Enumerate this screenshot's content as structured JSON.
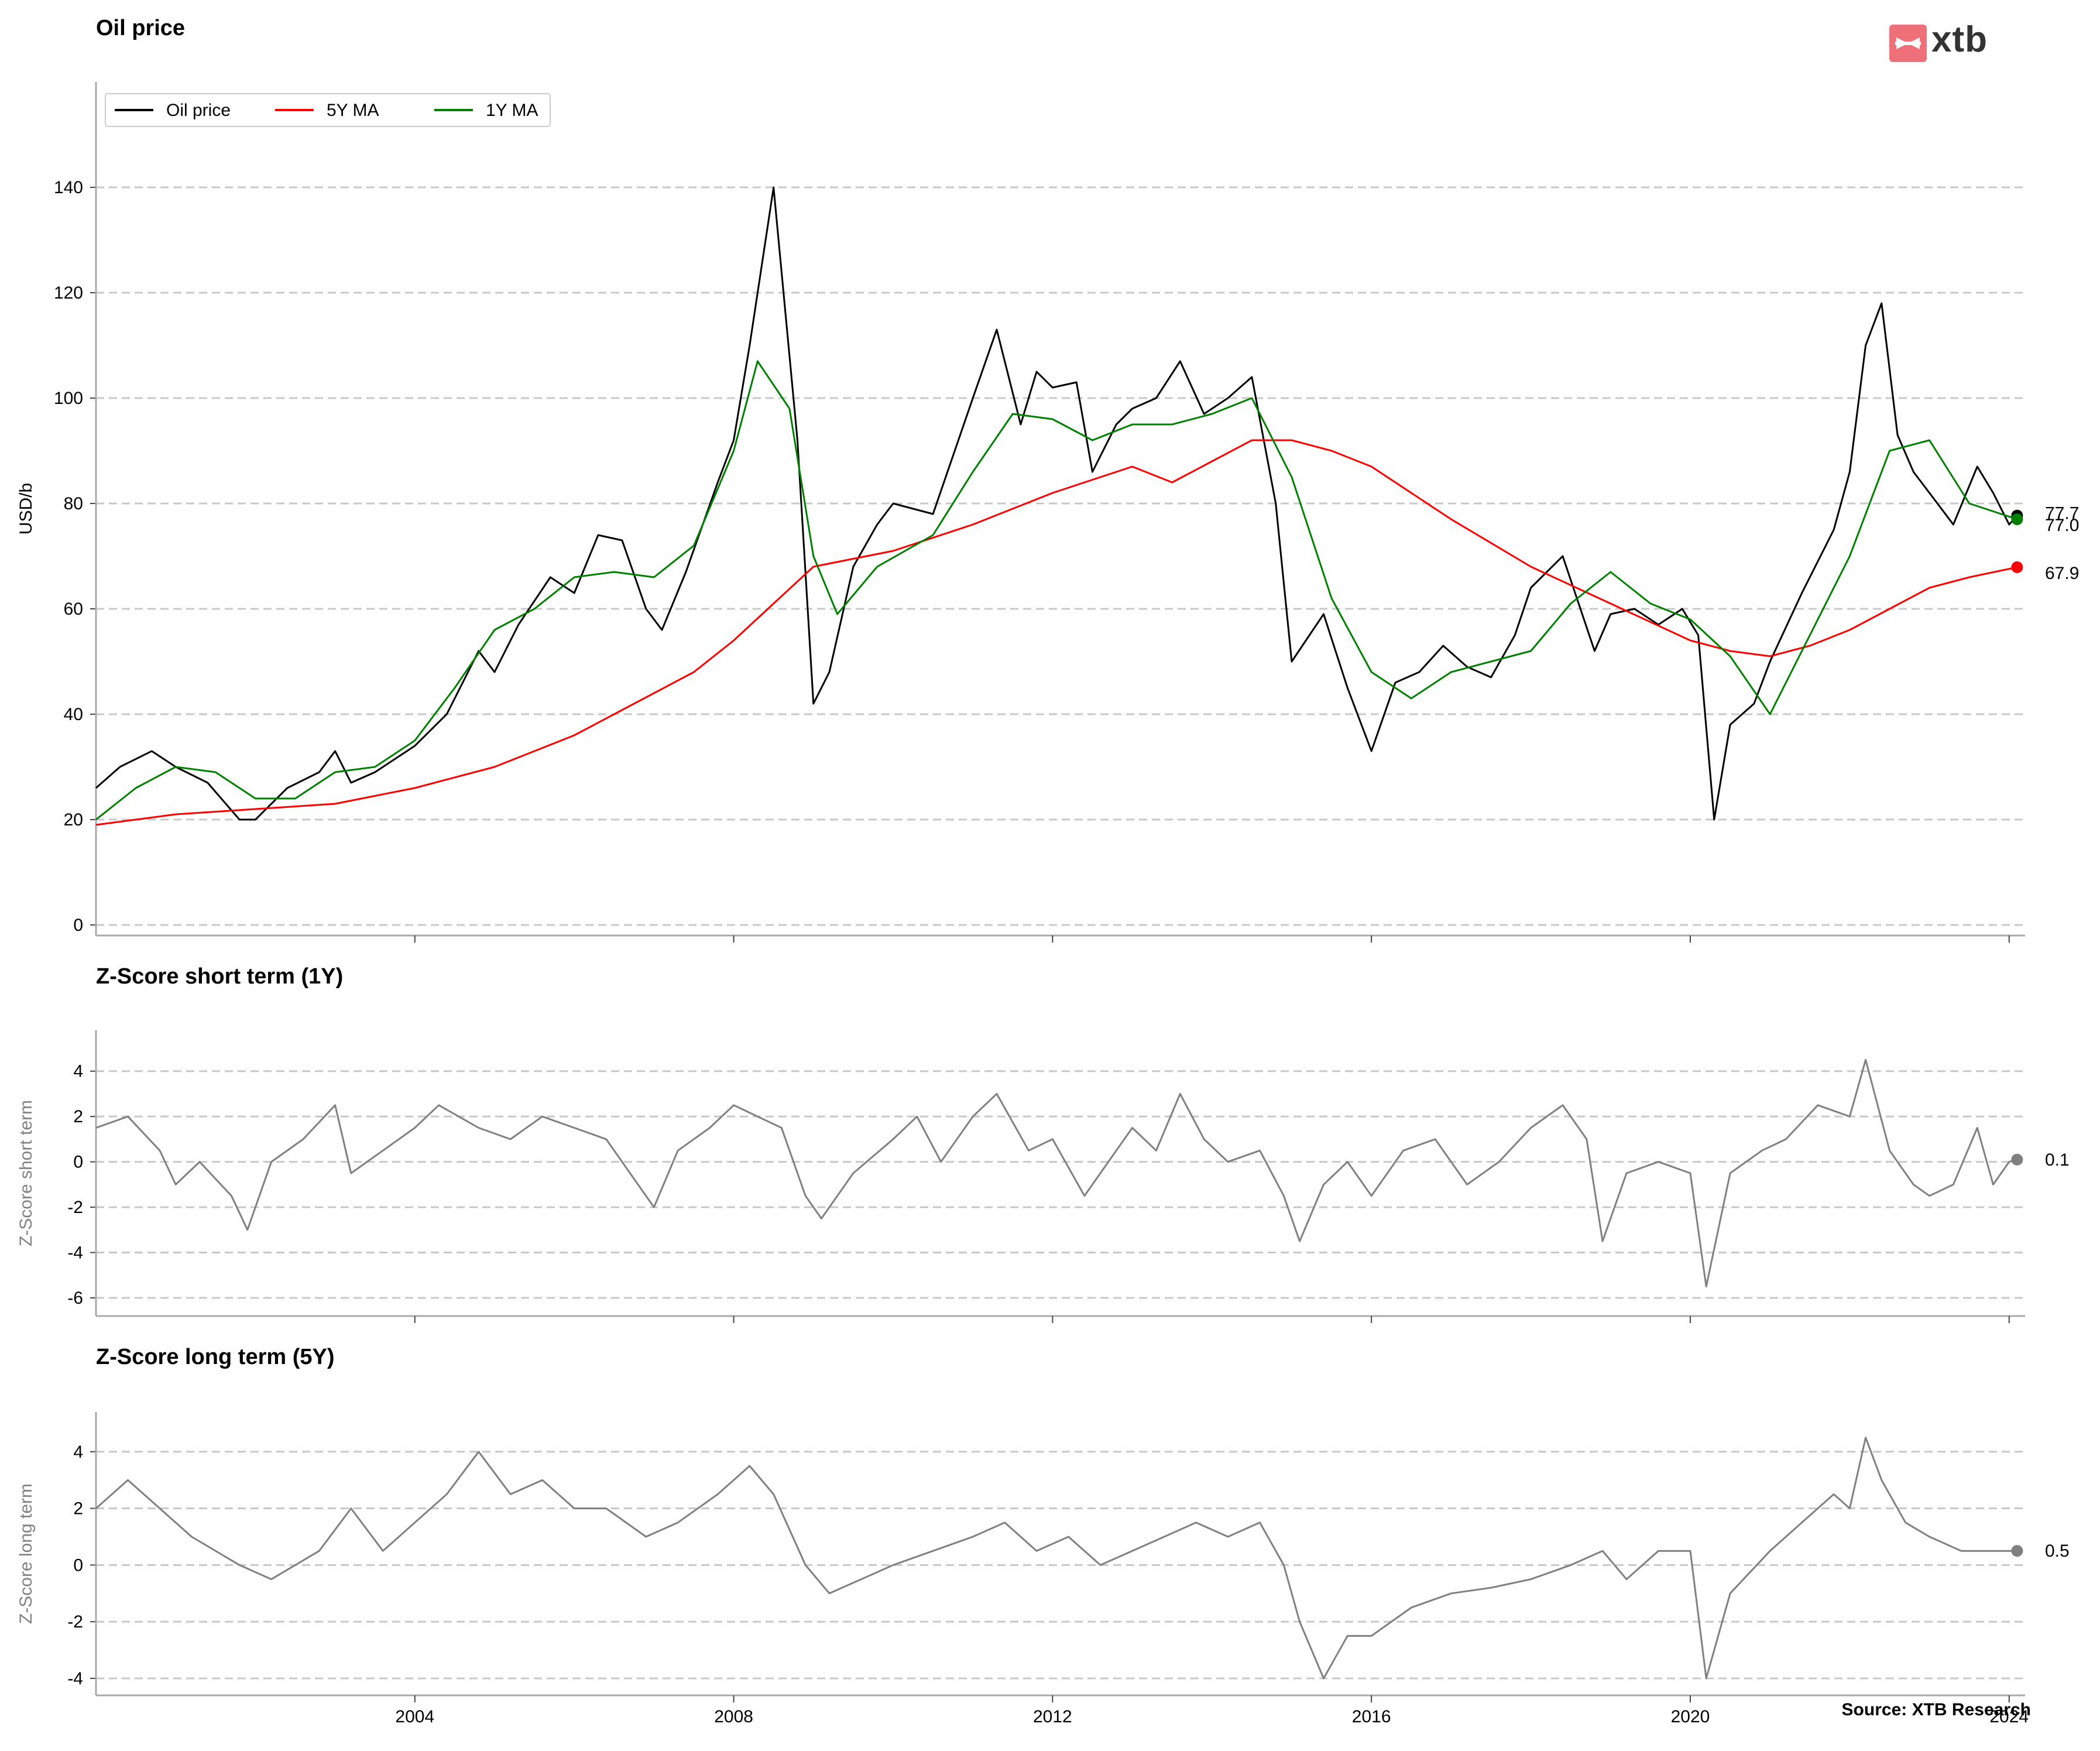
{
  "brand": {
    "logo_text": "xtb",
    "logo_color": "#f0707a"
  },
  "source": "Source: XTB Research",
  "colors": {
    "price": "#000000",
    "ma5": "#ff0000",
    "ma1": "#008000",
    "zscore": "#808080",
    "grid": "#c8c8c8",
    "axis": "#aaaaaa"
  },
  "chart_data": [
    {
      "type": "line",
      "title": "Oil price",
      "ylabel": "USD/b",
      "xlim": [
        2000.0,
        2024.2
      ],
      "ylim": [
        -2,
        160
      ],
      "yticks": [
        0,
        20,
        40,
        60,
        80,
        100,
        120,
        140
      ],
      "xticks": [
        2004,
        2008,
        2012,
        2016,
        2020,
        2024
      ],
      "grid": "horizontal dashed",
      "legend": "top-left",
      "series": [
        {
          "name": "Oil price",
          "color": "#000000",
          "x": [
            2000.0,
            2000.3,
            2000.7,
            2001.0,
            2001.4,
            2001.8,
            2002.0,
            2002.4,
            2002.8,
            2003.0,
            2003.2,
            2003.5,
            2004.0,
            2004.4,
            2004.8,
            2005.0,
            2005.3,
            2005.7,
            2006.0,
            2006.3,
            2006.6,
            2006.9,
            2007.1,
            2007.4,
            2007.8,
            2008.0,
            2008.2,
            2008.5,
            2008.8,
            2009.0,
            2009.2,
            2009.5,
            2009.8,
            2010.0,
            2010.5,
            2011.0,
            2011.3,
            2011.6,
            2011.8,
            2012.0,
            2012.3,
            2012.5,
            2012.8,
            2013.0,
            2013.3,
            2013.6,
            2013.9,
            2014.2,
            2014.5,
            2014.8,
            2015.0,
            2015.4,
            2015.7,
            2016.0,
            2016.3,
            2016.6,
            2016.9,
            2017.2,
            2017.5,
            2017.8,
            2018.0,
            2018.4,
            2018.8,
            2019.0,
            2019.3,
            2019.6,
            2019.9,
            2020.1,
            2020.3,
            2020.5,
            2020.8,
            2021.0,
            2021.4,
            2021.8,
            2022.0,
            2022.2,
            2022.4,
            2022.6,
            2022.8,
            2023.0,
            2023.3,
            2023.6,
            2023.8,
            2024.0,
            2024.1
          ],
          "values": [
            26,
            30,
            33,
            30,
            27,
            20,
            20,
            26,
            29,
            33,
            27,
            29,
            34,
            40,
            52,
            48,
            57,
            66,
            63,
            74,
            73,
            60,
            56,
            67,
            84,
            92,
            110,
            140,
            92,
            42,
            48,
            68,
            76,
            80,
            78,
            100,
            113,
            95,
            105,
            102,
            103,
            86,
            95,
            98,
            100,
            107,
            97,
            100,
            104,
            80,
            50,
            59,
            45,
            33,
            46,
            48,
            53,
            49,
            47,
            55,
            64,
            70,
            52,
            59,
            60,
            57,
            60,
            55,
            20,
            38,
            42,
            50,
            63,
            75,
            86,
            110,
            118,
            93,
            86,
            82,
            76,
            87,
            82,
            76,
            77.7
          ]
        },
        {
          "name": "5Y MA",
          "color": "#ff0000",
          "x": [
            2000.0,
            2001.0,
            2002.0,
            2003.0,
            2004.0,
            2005.0,
            2006.0,
            2007.0,
            2007.5,
            2008.0,
            2008.5,
            2009.0,
            2010.0,
            2011.0,
            2012.0,
            2013.0,
            2013.5,
            2014.0,
            2014.5,
            2015.0,
            2015.5,
            2016.0,
            2017.0,
            2018.0,
            2019.0,
            2020.0,
            2020.5,
            2021.0,
            2021.5,
            2022.0,
            2022.5,
            2023.0,
            2023.5,
            2024.1
          ],
          "values": [
            19,
            21,
            22,
            23,
            26,
            30,
            36,
            44,
            48,
            54,
            61,
            68,
            71,
            76,
            82,
            87,
            84,
            88,
            92,
            92,
            90,
            87,
            77,
            68,
            61,
            54,
            52,
            51,
            53,
            56,
            60,
            64,
            66,
            67.9
          ]
        },
        {
          "name": "1Y MA",
          "color": "#008000",
          "x": [
            2000.0,
            2000.5,
            2001.0,
            2001.5,
            2002.0,
            2002.5,
            2003.0,
            2003.5,
            2004.0,
            2004.5,
            2005.0,
            2005.5,
            2006.0,
            2006.5,
            2007.0,
            2007.5,
            2008.0,
            2008.3,
            2008.7,
            2009.0,
            2009.3,
            2009.8,
            2010.5,
            2011.0,
            2011.5,
            2012.0,
            2012.5,
            2013.0,
            2013.5,
            2014.0,
            2014.5,
            2015.0,
            2015.5,
            2016.0,
            2016.5,
            2017.0,
            2017.5,
            2018.0,
            2018.5,
            2019.0,
            2019.5,
            2020.0,
            2020.5,
            2021.0,
            2021.5,
            2022.0,
            2022.5,
            2023.0,
            2023.5,
            2024.1
          ],
          "values": [
            20,
            26,
            30,
            29,
            24,
            24,
            29,
            30,
            35,
            45,
            56,
            60,
            66,
            67,
            66,
            72,
            90,
            107,
            98,
            70,
            59,
            68,
            74,
            86,
            97,
            96,
            92,
            95,
            95,
            97,
            100,
            85,
            62,
            48,
            43,
            48,
            50,
            52,
            61,
            67,
            61,
            58,
            51,
            40,
            55,
            70,
            90,
            92,
            80,
            77.0
          ]
        }
      ],
      "end_labels": [
        "77.7",
        "77.0",
        "67.9"
      ]
    },
    {
      "type": "line",
      "title": "Z-Score short term (1Y)",
      "ylabel": "Z-Score short term",
      "xlim": [
        2000.0,
        2024.2
      ],
      "ylim": [
        -6.8,
        5.8
      ],
      "yticks": [
        -6,
        -4,
        -2,
        0,
        2,
        4
      ],
      "xticks": [
        2004,
        2008,
        2012,
        2016,
        2020,
        2024
      ],
      "grid": "horizontal dashed",
      "series": [
        {
          "color": "#808080",
          "x": [
            2000.0,
            2000.4,
            2000.8,
            2001.0,
            2001.3,
            2001.7,
            2001.9,
            2002.2,
            2002.6,
            2003.0,
            2003.2,
            2003.6,
            2004.0,
            2004.3,
            2004.8,
            2005.2,
            2005.6,
            2006.0,
            2006.4,
            2006.8,
            2007.0,
            2007.3,
            2007.7,
            2008.0,
            2008.3,
            2008.6,
            2008.9,
            2009.1,
            2009.5,
            2010.0,
            2010.3,
            2010.6,
            2011.0,
            2011.3,
            2011.7,
            2012.0,
            2012.4,
            2012.8,
            2013.0,
            2013.3,
            2013.6,
            2013.9,
            2014.2,
            2014.6,
            2014.9,
            2015.1,
            2015.4,
            2015.7,
            2016.0,
            2016.4,
            2016.8,
            2017.2,
            2017.6,
            2018.0,
            2018.4,
            2018.7,
            2018.9,
            2019.2,
            2019.6,
            2020.0,
            2020.2,
            2020.5,
            2020.9,
            2021.2,
            2021.6,
            2022.0,
            2022.2,
            2022.5,
            2022.8,
            2023.0,
            2023.3,
            2023.6,
            2023.8,
            2024.0,
            2024.1
          ],
          "values": [
            1.5,
            2.0,
            0.5,
            -1.0,
            0.0,
            -1.5,
            -3.0,
            0.0,
            1.0,
            2.5,
            -0.5,
            0.5,
            1.5,
            2.5,
            1.5,
            1.0,
            2.0,
            1.5,
            1.0,
            -1.0,
            -2.0,
            0.5,
            1.5,
            2.5,
            2.0,
            1.5,
            -1.5,
            -2.5,
            -0.5,
            1.0,
            2.0,
            0.0,
            2.0,
            3.0,
            0.5,
            1.0,
            -1.5,
            0.5,
            1.5,
            0.5,
            3.0,
            1.0,
            0.0,
            0.5,
            -1.5,
            -3.5,
            -1.0,
            0.0,
            -1.5,
            0.5,
            1.0,
            -1.0,
            0.0,
            1.5,
            2.5,
            1.0,
            -3.5,
            -0.5,
            0.0,
            -0.5,
            -5.5,
            -0.5,
            0.5,
            1.0,
            2.5,
            2.0,
            4.5,
            0.5,
            -1.0,
            -1.5,
            -1.0,
            1.5,
            -1.0,
            0.0,
            0.1
          ]
        }
      ],
      "end_labels": [
        "0.1"
      ]
    },
    {
      "type": "line",
      "title": "Z-Score long term (5Y)",
      "ylabel": "Z-Score long term",
      "xlim": [
        2000.0,
        2024.2
      ],
      "ylim": [
        -4.6,
        5.4
      ],
      "yticks": [
        -4,
        -2,
        0,
        2,
        4
      ],
      "xticks": [
        2004,
        2008,
        2012,
        2016,
        2020,
        2024
      ],
      "grid": "horizontal dashed",
      "series": [
        {
          "color": "#808080",
          "x": [
            2000.0,
            2000.4,
            2000.8,
            2001.2,
            2001.8,
            2002.2,
            2002.8,
            2003.2,
            2003.6,
            2004.0,
            2004.4,
            2004.8,
            2005.2,
            2005.6,
            2006.0,
            2006.4,
            2006.9,
            2007.3,
            2007.8,
            2008.2,
            2008.5,
            2008.9,
            2009.2,
            2009.6,
            2010.0,
            2010.5,
            2011.0,
            2011.4,
            2011.8,
            2012.2,
            2012.6,
            2013.0,
            2013.4,
            2013.8,
            2014.2,
            2014.6,
            2014.9,
            2015.1,
            2015.4,
            2015.7,
            2016.0,
            2016.5,
            2017.0,
            2017.5,
            2018.0,
            2018.5,
            2018.9,
            2019.2,
            2019.6,
            2020.0,
            2020.2,
            2020.5,
            2021.0,
            2021.4,
            2021.8,
            2022.0,
            2022.2,
            2022.4,
            2022.7,
            2023.0,
            2023.4,
            2023.8,
            2024.1
          ],
          "values": [
            2.0,
            3.0,
            2.0,
            1.0,
            0.0,
            -0.5,
            0.5,
            2.0,
            0.5,
            1.5,
            2.5,
            4.0,
            2.5,
            3.0,
            2.0,
            2.0,
            1.0,
            1.5,
            2.5,
            3.5,
            2.5,
            0.0,
            -1.0,
            -0.5,
            0.0,
            0.5,
            1.0,
            1.5,
            0.5,
            1.0,
            0.0,
            0.5,
            1.0,
            1.5,
            1.0,
            1.5,
            0.0,
            -2.0,
            -4.0,
            -2.5,
            -2.5,
            -1.5,
            -1.0,
            -0.8,
            -0.5,
            0.0,
            0.5,
            -0.5,
            0.5,
            0.5,
            -4.0,
            -1.0,
            0.5,
            1.5,
            2.5,
            2.0,
            4.5,
            3.0,
            1.5,
            1.0,
            0.5,
            0.5,
            0.5
          ]
        }
      ],
      "end_labels": [
        "0.5"
      ]
    }
  ]
}
